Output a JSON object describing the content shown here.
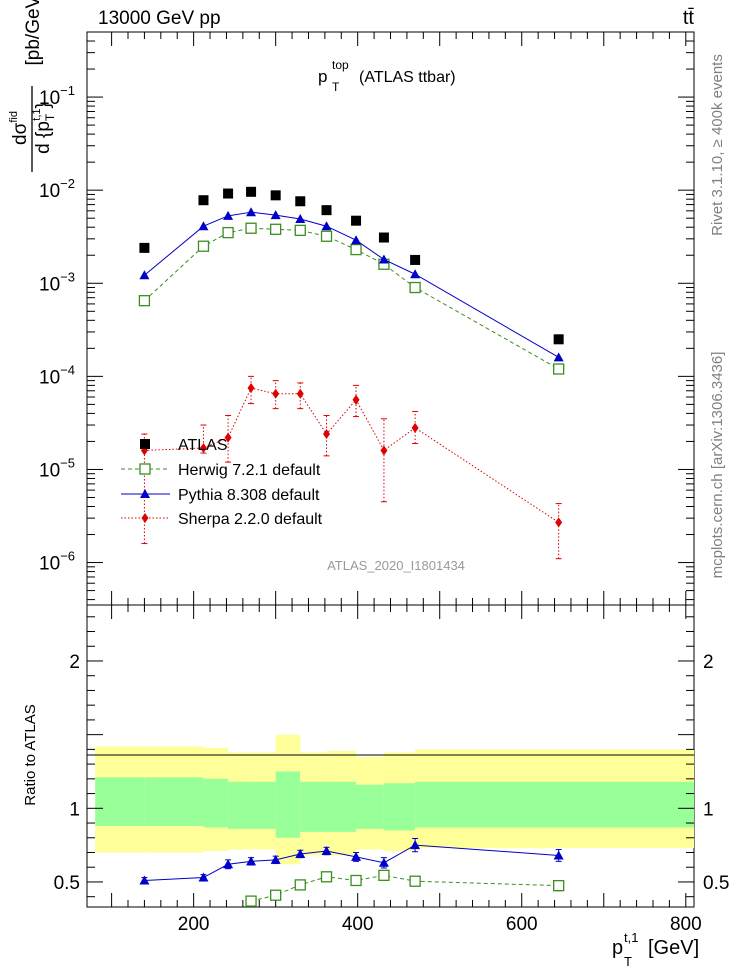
{
  "header": {
    "energy_label": "13000 GeV pp",
    "process_label": "tt̄"
  },
  "plot_title": {
    "main": "p",
    "sup": "top",
    "sub": "T",
    "suffix": "(ATLAS ttbar)"
  },
  "side_labels": {
    "rivet": "Rivet 3.1.10, ≥ 400k events",
    "mcplots": "mcplots.cern.ch [arXiv:1306.3436]"
  },
  "analysis_label": "ATLAS_2020_I1801434",
  "chart_data": [
    {
      "type": "scatter",
      "panel": "main",
      "y_scale": "log",
      "xlim": [
        70,
        810
      ],
      "ylim": [
        3.5e-07,
        0.5
      ],
      "ylabel": "dσ^fid / d{p_T^{t,1}} [pb/GeV]",
      "y_ticks": [
        {
          "value": 1e-06,
          "label": "10",
          "exp": "−6"
        },
        {
          "value": 1e-05,
          "label": "10",
          "exp": "−5"
        },
        {
          "value": 0.0001,
          "label": "10",
          "exp": "−4"
        },
        {
          "value": 0.001,
          "label": "10",
          "exp": "−3"
        },
        {
          "value": 0.01,
          "label": "10",
          "exp": "−2"
        },
        {
          "value": 0.1,
          "label": "10",
          "exp": "−1"
        }
      ],
      "legend_position": "bottom-left",
      "series": [
        {
          "name": "ATLAS",
          "marker": "square-filled",
          "color": "#000000",
          "x": [
            140,
            212,
            242,
            270,
            300,
            330,
            362,
            398,
            432,
            470,
            645
          ],
          "y": [
            0.0024,
            0.0078,
            0.0092,
            0.0096,
            0.0088,
            0.0076,
            0.0061,
            0.0047,
            0.0031,
            0.00178,
            0.00025
          ]
        },
        {
          "name": "Herwig 7.2.1 default",
          "marker": "square-open",
          "color": "#3a8f1e",
          "line": "dashed",
          "x": [
            140,
            212,
            242,
            270,
            300,
            330,
            362,
            398,
            432,
            470,
            645
          ],
          "y": [
            0.00065,
            0.0025,
            0.0035,
            0.0039,
            0.0038,
            0.0037,
            0.0032,
            0.0023,
            0.0016,
            0.0009,
            0.00012
          ]
        },
        {
          "name": "Pythia 8.308 default",
          "marker": "triangle-filled",
          "color": "#0000c8",
          "line": "solid",
          "x": [
            140,
            212,
            242,
            270,
            300,
            330,
            362,
            398,
            432,
            470,
            645
          ],
          "y": [
            0.00122,
            0.0041,
            0.0053,
            0.0058,
            0.0054,
            0.0049,
            0.0041,
            0.0029,
            0.0018,
            0.00125,
            0.00016
          ]
        },
        {
          "name": "Sherpa 2.2.0 default",
          "marker": "diamond-filled",
          "color": "#e00000",
          "line": "dotted",
          "x": [
            140,
            212,
            242,
            270,
            300,
            330,
            362,
            398,
            432,
            470,
            645
          ],
          "y": [
            1.6e-05,
            1.7e-05,
            2.2e-05,
            7.5e-05,
            6.5e-05,
            6.5e-05,
            2.4e-05,
            5.6e-05,
            1.6e-05,
            2.8e-05,
            2.7e-06
          ],
          "err_lo": [
            1.6e-06,
            1.5e-05,
            1.2e-05,
            5.1e-05,
            4.5e-05,
            4.5e-05,
            1.4e-05,
            3.7e-05,
            4.5e-06,
            1.9e-05,
            1.1e-06
          ],
          "err_hi": [
            2.4e-05,
            3e-05,
            3.8e-05,
            0.0001,
            9e-05,
            8.5e-05,
            3.8e-05,
            8e-05,
            3.5e-05,
            4.2e-05,
            4.3e-06
          ]
        }
      ]
    },
    {
      "type": "line",
      "panel": "ratio",
      "xlim": [
        70,
        810
      ],
      "ylim": [
        0.33,
        2.38
      ],
      "xlabel": "p_T^{t,1} [GeV]",
      "ylabel": "Ratio to ATLAS",
      "x_ticks": [
        200,
        400,
        600,
        800
      ],
      "y_ticks": [
        0.5,
        1,
        2
      ],
      "bands": {
        "edges": [
          80,
          140,
          212,
          242,
          270,
          300,
          330,
          362,
          398,
          432,
          470,
          810
        ],
        "inner_lo": [
          0.88,
          0.88,
          0.87,
          0.86,
          0.86,
          0.8,
          0.84,
          0.84,
          0.86,
          0.85,
          0.87
        ],
        "inner_hi": [
          1.21,
          1.21,
          1.2,
          1.18,
          1.18,
          1.25,
          1.18,
          1.18,
          1.16,
          1.17,
          1.18
        ],
        "outer_lo": [
          0.7,
          0.7,
          0.71,
          0.72,
          0.72,
          0.62,
          0.68,
          0.68,
          0.72,
          0.71,
          0.73
        ],
        "outer_hi": [
          1.42,
          1.42,
          1.41,
          1.38,
          1.38,
          1.5,
          1.38,
          1.39,
          1.35,
          1.38,
          1.4
        ],
        "inner_color": "#99ff99",
        "outer_color": "#ffff99"
      },
      "series": [
        {
          "name": "Pythia 8.308 default",
          "color": "#0000c8",
          "x": [
            140,
            212,
            242,
            270,
            300,
            330,
            362,
            398,
            432,
            470,
            645
          ],
          "y": [
            0.51,
            0.53,
            0.62,
            0.64,
            0.65,
            0.69,
            0.71,
            0.67,
            0.63,
            0.75,
            0.68
          ],
          "err": [
            0.02,
            0.02,
            0.03,
            0.025,
            0.025,
            0.025,
            0.025,
            0.03,
            0.035,
            0.045,
            0.04
          ]
        },
        {
          "name": "Herwig 7.2.1 default",
          "color": "#3a8f1e",
          "x": [
            270,
            300,
            330,
            362,
            398,
            432,
            470,
            645
          ],
          "y": [
            0.37,
            0.41,
            0.48,
            0.535,
            0.51,
            0.545,
            0.505,
            0.475
          ],
          "err": [
            0.015,
            0.02,
            0.02,
            0.02,
            0.025,
            0.03,
            0.03,
            0.035
          ]
        }
      ]
    }
  ]
}
